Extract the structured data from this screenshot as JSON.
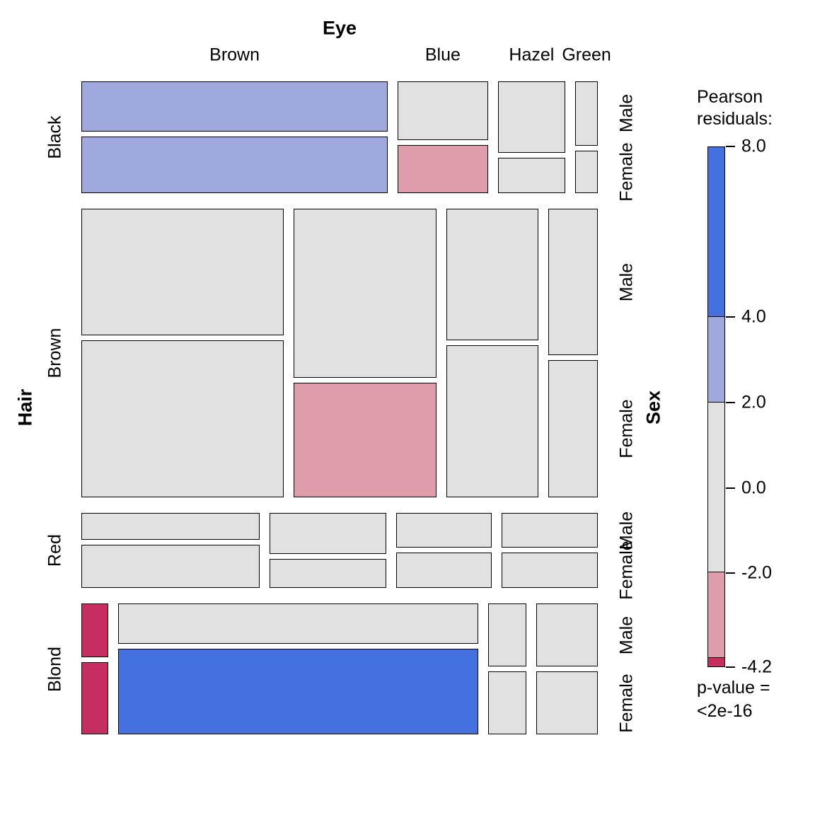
{
  "chart_data": {
    "type": "mosaic",
    "axis_titles": {
      "top": "Eye",
      "left": "Hair",
      "right": "Sex"
    },
    "rows": [
      "Black",
      "Brown",
      "Red",
      "Blond"
    ],
    "cols": [
      "Brown",
      "Blue",
      "Hazel",
      "Green"
    ],
    "panels": [
      "Male",
      "Female"
    ],
    "shade_colors": {
      "hi": "#4570e0",
      "mid": "#a0a9dd",
      "none": "#e1e1e1",
      "lo": "#df9cab",
      "lolo": "#c62e61"
    },
    "cells": [
      {
        "hair": "Black",
        "eye": "Brown",
        "male": 32,
        "female": 36,
        "male_shade": "mid",
        "female_shade": "mid"
      },
      {
        "hair": "Black",
        "eye": "Blue",
        "male": 11,
        "female": 9,
        "male_shade": "none",
        "female_shade": "lo"
      },
      {
        "hair": "Black",
        "eye": "Hazel",
        "male": 10,
        "female": 5,
        "male_shade": "none",
        "female_shade": "none"
      },
      {
        "hair": "Black",
        "eye": "Green",
        "male": 3,
        "female": 2,
        "male_shade": "none",
        "female_shade": "none"
      },
      {
        "hair": "Brown",
        "eye": "Brown",
        "male": 53,
        "female": 66,
        "male_shade": "none",
        "female_shade": "none"
      },
      {
        "hair": "Brown",
        "eye": "Blue",
        "male": 50,
        "female": 34,
        "male_shade": "none",
        "female_shade": "lo"
      },
      {
        "hair": "Brown",
        "eye": "Hazel",
        "male": 25,
        "female": 29,
        "male_shade": "none",
        "female_shade": "none"
      },
      {
        "hair": "Brown",
        "eye": "Green",
        "male": 15,
        "female": 14,
        "male_shade": "none",
        "female_shade": "none"
      },
      {
        "hair": "Red",
        "eye": "Brown",
        "male": 10,
        "female": 16,
        "male_shade": "none",
        "female_shade": "none"
      },
      {
        "hair": "Red",
        "eye": "Blue",
        "male": 10,
        "female": 7,
        "male_shade": "none",
        "female_shade": "none"
      },
      {
        "hair": "Red",
        "eye": "Hazel",
        "male": 7,
        "female": 7,
        "male_shade": "none",
        "female_shade": "none"
      },
      {
        "hair": "Red",
        "eye": "Green",
        "male": 7,
        "female": 7,
        "male_shade": "none",
        "female_shade": "none"
      },
      {
        "hair": "Blond",
        "eye": "Brown",
        "male": 3,
        "female": 4,
        "male_shade": "lolo",
        "female_shade": "lolo"
      },
      {
        "hair": "Blond",
        "eye": "Blue",
        "male": 30,
        "female": 64,
        "male_shade": "none",
        "female_shade": "hi"
      },
      {
        "hair": "Blond",
        "eye": "Hazel",
        "male": 5,
        "female": 5,
        "male_shade": "none",
        "female_shade": "none"
      },
      {
        "hair": "Blond",
        "eye": "Green",
        "male": 8,
        "female": 8,
        "male_shade": "none",
        "female_shade": "none"
      }
    ],
    "legend": {
      "title": "Pearson residuals:",
      "max": 8.0,
      "min": -4.2,
      "ticks": [
        {
          "v": 8.0,
          "label": "8.0"
        },
        {
          "v": 4.0,
          "label": "4.0"
        },
        {
          "v": 2.0,
          "label": "2.0"
        },
        {
          "v": 0.0,
          "label": "0.0"
        },
        {
          "v": -2.0,
          "label": "-2.0"
        },
        {
          "v": -4.2,
          "label": "-4.2"
        }
      ],
      "segments": [
        {
          "from": 8.0,
          "to": 4.0,
          "shade": "hi"
        },
        {
          "from": 4.0,
          "to": 2.0,
          "shade": "mid"
        },
        {
          "from": 2.0,
          "to": -2.0,
          "shade": "none"
        },
        {
          "from": -2.0,
          "to": -4.0,
          "shade": "lo"
        },
        {
          "from": -4.0,
          "to": -4.2,
          "shade": "lolo"
        }
      ],
      "p_label": "p-value =",
      "p_value": "<2e-16"
    }
  }
}
